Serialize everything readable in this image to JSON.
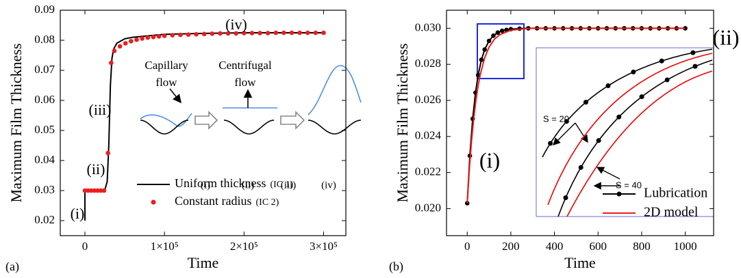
{
  "chart_data": [
    {
      "type": "line",
      "panel_label": "(a)",
      "xlabel": "Time",
      "ylabel": "Maximum Film Thickness",
      "xlim": [
        -31000,
        328000
      ],
      "ylim": [
        0.015,
        0.09
      ],
      "xticks": [
        0,
        {
          "value": 100000,
          "label": "1×10⁵"
        },
        {
          "value": 200000,
          "label": "2×10⁵"
        },
        {
          "value": 300000,
          "label": "3×10⁵"
        }
      ],
      "yticks": [
        0.02,
        0.03,
        0.04,
        0.05,
        0.06,
        0.07,
        0.08,
        0.09
      ],
      "legend": "lower right",
      "series": [
        {
          "name": "Uniform thickness",
          "name_note": "(IC 1)",
          "color": "#000000",
          "line": true,
          "marker": "none",
          "x": [
            0,
            0,
            10000,
            20000,
            25000,
            28000,
            30000,
            32000,
            34000,
            36000,
            40000,
            50000,
            60000,
            80000,
            100000,
            150000,
            200000,
            250000,
            300000
          ],
          "values": [
            0.02,
            0.03,
            0.03,
            0.03,
            0.0302,
            0.033,
            0.045,
            0.065,
            0.074,
            0.077,
            0.079,
            0.0805,
            0.081,
            0.0815,
            0.082,
            0.0823,
            0.0825,
            0.0825,
            0.0825
          ]
        },
        {
          "name": "Constant radius",
          "name_note": "(IC 2)",
          "color": "#ee1c1c",
          "line": false,
          "marker": "circle",
          "x": [
            0,
            4000,
            8000,
            12000,
            16000,
            20000,
            24000,
            29000,
            33000,
            37000,
            44000,
            51000,
            58000,
            65000,
            72000,
            79000,
            86000,
            93000,
            100000,
            110000,
            120000,
            130000,
            140000,
            150000,
            160000,
            170000,
            180000,
            190000,
            200000,
            210000,
            220000,
            230000,
            240000,
            250000,
            260000,
            270000,
            280000,
            290000,
            300000
          ],
          "values": [
            0.03,
            0.03,
            0.03,
            0.03,
            0.03,
            0.03,
            0.03,
            0.0425,
            0.0725,
            0.0765,
            0.078,
            0.079,
            0.0797,
            0.0802,
            0.0806,
            0.0809,
            0.0811,
            0.0813,
            0.0815,
            0.0817,
            0.0818,
            0.0819,
            0.082,
            0.0821,
            0.0822,
            0.0823,
            0.0823,
            0.0823,
            0.0824,
            0.0824,
            0.0824,
            0.0824,
            0.0825,
            0.0825,
            0.0825,
            0.0825,
            0.0825,
            0.0825,
            0.0825
          ]
        }
      ],
      "annotations": [
        "(i)",
        "(ii)",
        "(iii)",
        "(iv)",
        "Capillary",
        "flow",
        "Centrifugal",
        "flow",
        "(i)",
        "(ii)",
        "(iii)",
        "(iv)"
      ]
    },
    {
      "type": "line",
      "panel_label": "(b)",
      "xlabel": "Time",
      "ylabel": "Maximum Film Thickness",
      "xlim": [
        -95,
        1130
      ],
      "ylim": [
        0.0185,
        0.031
      ],
      "xticks": [
        0,
        200,
        400,
        600,
        800,
        1000
      ],
      "yticks": [
        {
          "value": 0.02,
          "label": "0.020"
        },
        {
          "value": 0.022,
          "label": "0.022"
        },
        {
          "value": 0.024,
          "label": "0.024"
        },
        {
          "value": 0.026,
          "label": "0.026"
        },
        {
          "value": 0.028,
          "label": "0.028"
        },
        {
          "value": 0.03,
          "label": "0.030"
        }
      ],
      "legend": "lower right",
      "series": [
        {
          "name": "Lubrication",
          "color": "#000000",
          "line": true,
          "marker": "circle",
          "x": [
            0,
            12,
            25,
            38,
            50,
            65,
            80,
            100,
            120,
            140,
            160,
            180,
            200,
            240,
            280,
            320,
            360,
            400,
            440,
            480,
            520,
            560,
            600,
            640,
            680,
            720,
            760,
            800,
            840,
            880,
            920,
            960,
            1000
          ],
          "values": [
            0.0203,
            0.02293,
            0.02498,
            0.02643,
            0.0274,
            0.02825,
            0.02882,
            0.0293,
            0.02959,
            0.02976,
            0.02986,
            0.02991,
            0.02995,
            0.02998,
            0.03,
            0.03,
            0.03,
            0.03,
            0.03,
            0.03,
            0.03,
            0.03,
            0.03,
            0.03,
            0.03,
            0.03,
            0.03,
            0.03,
            0.03,
            0.03,
            0.03,
            0.03,
            0.03
          ]
        },
        {
          "name": "2D model",
          "color": "#ee1c1c",
          "line": true,
          "marker": "none",
          "x": [
            0,
            10,
            20,
            30,
            40,
            50,
            60,
            80,
            100,
            125,
            150,
            200,
            250,
            300,
            400,
            500,
            600,
            700,
            800,
            900,
            1000
          ],
          "values": [
            0.0203,
            0.02223,
            0.02378,
            0.02502,
            0.02601,
            0.02681,
            0.02744,
            0.02836,
            0.02895,
            0.0294,
            0.02965,
            0.02989,
            0.02996,
            0.03,
            0.03,
            0.03,
            0.03,
            0.03,
            0.03,
            0.03,
            0.03
          ]
        }
      ],
      "annotations": [
        "(i)",
        "(ii)",
        "S = 20",
        "S = 40"
      ]
    }
  ]
}
